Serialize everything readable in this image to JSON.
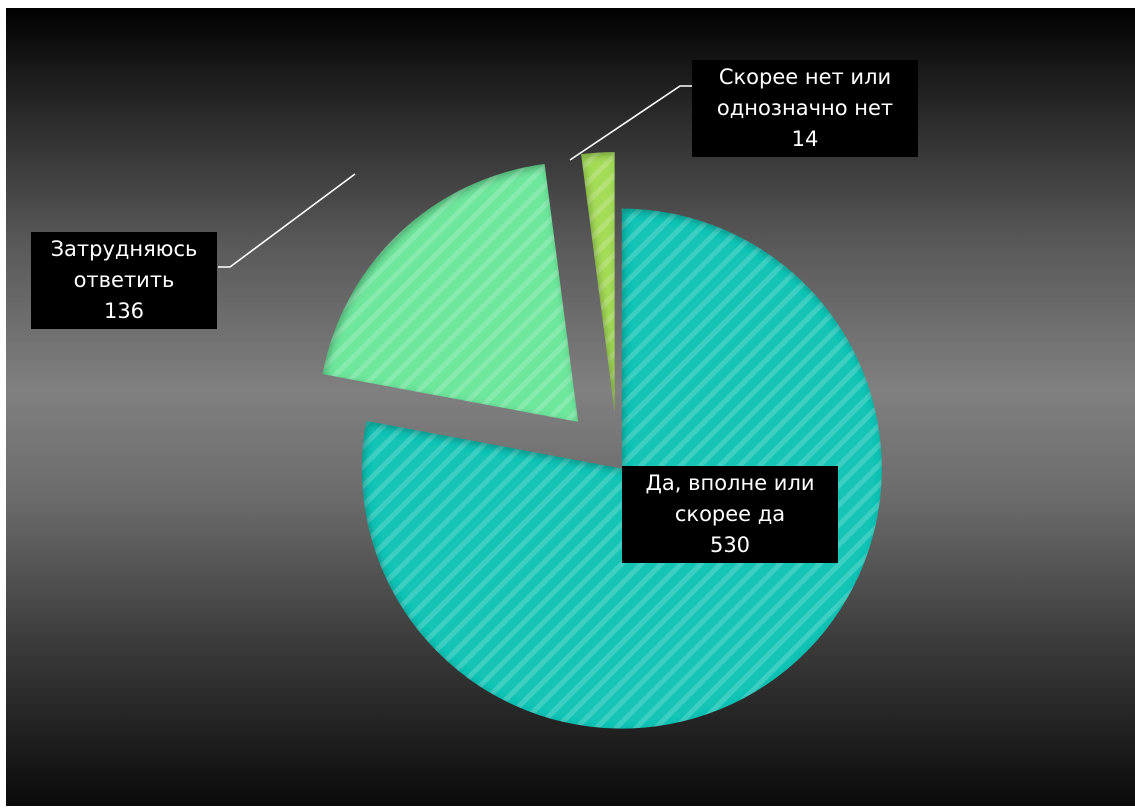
{
  "chart_data": {
    "type": "pie",
    "title": "",
    "slices": [
      {
        "label_line1": "Да, вполне или",
        "label_line2": "скорее да",
        "value": 530,
        "color": "#14c4b6"
      },
      {
        "label_line1": "Затрудняюсь",
        "label_line2": "ответить",
        "value": 136,
        "color": "#6ee69c"
      },
      {
        "label_line1": "Скорее нет или",
        "label_line2": "однозначно нет",
        "value": 14,
        "color": "#a4dc58"
      }
    ],
    "exploded": true,
    "legend": "none",
    "style": "diagonal-hatch fill, inner shadow"
  }
}
